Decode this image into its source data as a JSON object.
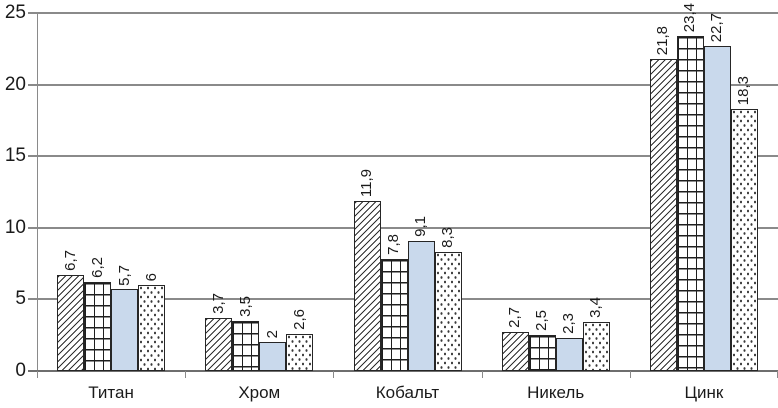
{
  "chart_data": {
    "type": "bar",
    "title": "",
    "xlabel": "",
    "ylabel": "",
    "categories": [
      "Титан",
      "Хром",
      "Кобальт",
      "Никель",
      "Цинк"
    ],
    "series": [
      {
        "pattern": "diagonal-hatch",
        "values": [
          6.7,
          3.7,
          11.9,
          2.7,
          21.8
        ],
        "labels": [
          "6,7",
          "3,7",
          "11,9",
          "2,7",
          "21,8"
        ]
      },
      {
        "pattern": "grid-hatch",
        "values": [
          6.2,
          3.5,
          7.8,
          2.5,
          23.4
        ],
        "labels": [
          "6,2",
          "3,5",
          "7,8",
          "2,5",
          "23,4"
        ]
      },
      {
        "pattern": "solid-light-blue",
        "values": [
          5.7,
          2,
          9.1,
          2.3,
          22.7
        ],
        "labels": [
          "5,7",
          "2",
          "9,1",
          "2,3",
          "22,7"
        ]
      },
      {
        "pattern": "dotted",
        "values": [
          6,
          2.6,
          8.3,
          3.4,
          18.3
        ],
        "labels": [
          "6",
          "2,6",
          "8,3",
          "3,4",
          "18,3"
        ]
      }
    ],
    "y_axis": {
      "min": 0,
      "max": 25,
      "ticks": [
        "0",
        "5",
        "10",
        "15",
        "20",
        "25"
      ],
      "tick_values": [
        0,
        5,
        10,
        15,
        20,
        25
      ]
    },
    "grid": true,
    "legend_position": "none",
    "decimal_separator": ",",
    "colors": {
      "solid_fill": "#C9D9EC",
      "bar_border": "#262626",
      "gridline": "#8a8a8a",
      "axis": "#6e6e6e",
      "text": "#1a1a1a",
      "background": "#ffffff"
    }
  }
}
